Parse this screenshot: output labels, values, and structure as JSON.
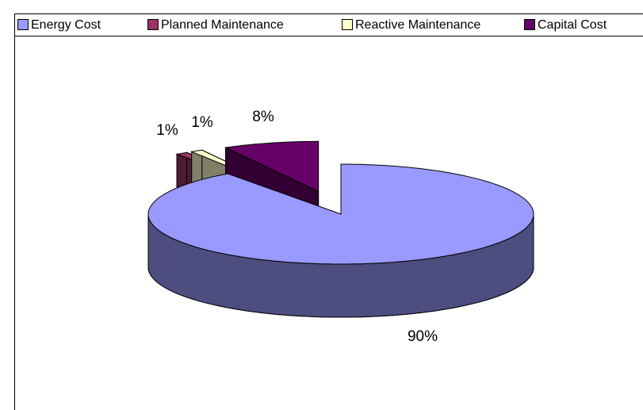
{
  "chart_data": {
    "type": "pie3d",
    "categories": [
      "Energy Cost",
      "Planned Maintenance",
      "Reactive Maintenance",
      "Capital Cost"
    ],
    "values": [
      90,
      1,
      1,
      8
    ],
    "value_labels": [
      "90%",
      "1%",
      "1%",
      "8%"
    ],
    "colors": [
      "#9999ff",
      "#993366",
      "#ffffcc",
      "#660066"
    ],
    "legend": "top"
  }
}
